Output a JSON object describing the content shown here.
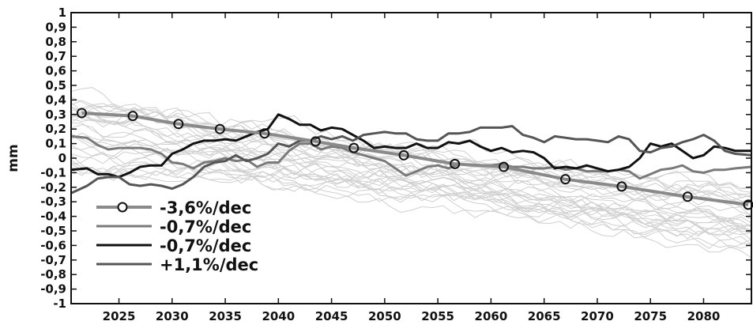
{
  "chart_data": {
    "type": "line",
    "title": "",
    "xlabel": "",
    "ylabel": "mm",
    "xlim": [
      2020.5,
      2084.5
    ],
    "ylim": [
      -1,
      1
    ],
    "x_ticks": [
      2025,
      2030,
      2035,
      2040,
      2045,
      2050,
      2055,
      2060,
      2065,
      2070,
      2075,
      2080
    ],
    "x_tick_labels": [
      "2025",
      "2030",
      "2035",
      "2040",
      "2045",
      "2050",
      "2055",
      "2060",
      "2065",
      "2070",
      "2075",
      "2080"
    ],
    "y_ticks": [
      1,
      0.9,
      0.8,
      0.7,
      0.6,
      0.5,
      0.4,
      0.3,
      0.2,
      0.1,
      0,
      -0.1,
      -0.2,
      -0.3,
      -0.4,
      -0.5,
      -0.6,
      -0.7,
      -0.8,
      -0.9,
      -1
    ],
    "y_tick_labels": [
      "1",
      "0,9",
      "0,8",
      "0,7",
      "0,6",
      "0,5",
      "0,4",
      "0,3",
      "0,2",
      "0,1",
      "0",
      "-0,1",
      "-0,2",
      "-0,3",
      "-0,4",
      "-0,5",
      "-0,6",
      "-0,7",
      "-0,8",
      "-0,9",
      "-1"
    ],
    "grid": false,
    "legend_position": "bottom-left",
    "ensemble_color": "#cfcfcf",
    "series": [
      {
        "name": "-3,6%/dec",
        "color": "#8a8a8a",
        "marker": "circle",
        "x": [
          2021.5,
          2026.3,
          2030.6,
          2034.5,
          2038.7,
          2043.5,
          2047.1,
          2051.8,
          2056.6,
          2061.2,
          2067.0,
          2072.3,
          2078.5,
          2084.2
        ],
        "values": [
          0.31,
          0.29,
          0.235,
          0.2,
          0.17,
          0.115,
          0.07,
          0.02,
          -0.04,
          -0.06,
          -0.145,
          -0.195,
          -0.265,
          -0.32
        ]
      },
      {
        "name": "-0,7%/dec",
        "color": "#7a7a7a",
        "x": [
          2020.5,
          2022,
          2023,
          2024,
          2025,
          2026,
          2027,
          2028,
          2029,
          2030,
          2031,
          2032,
          2033,
          2034,
          2035,
          2036,
          2037,
          2038,
          2039,
          2040,
          2041,
          2042,
          2043,
          2044,
          2045,
          2046,
          2047,
          2048,
          2049,
          2050,
          2051,
          2052,
          2053,
          2054,
          2055,
          2056,
          2057,
          2058,
          2059,
          2060,
          2061,
          2062,
          2063,
          2064,
          2065,
          2066,
          2067,
          2068,
          2069,
          2070,
          2071,
          2072,
          2073,
          2074,
          2075,
          2076,
          2077,
          2078,
          2079,
          2080,
          2081,
          2082,
          2083,
          2084.5
        ],
        "values": [
          0.15,
          0.14,
          0.09,
          0.06,
          0.07,
          0.07,
          0.07,
          0.06,
          0.03,
          -0.03,
          -0.04,
          -0.07,
          -0.03,
          -0.02,
          0.0,
          -0.02,
          -0.01,
          -0.06,
          -0.03,
          -0.03,
          0.05,
          0.1,
          0.1,
          0.06,
          0.08,
          0.07,
          0.04,
          0.02,
          0.0,
          -0.02,
          -0.07,
          -0.12,
          -0.09,
          -0.06,
          -0.05,
          -0.07,
          -0.04,
          -0.05,
          -0.05,
          -0.05,
          -0.04,
          -0.06,
          -0.06,
          -0.07,
          -0.07,
          -0.06,
          -0.08,
          -0.07,
          -0.09,
          -0.09,
          -0.09,
          -0.08,
          -0.09,
          -0.14,
          -0.11,
          -0.08,
          -0.07,
          -0.05,
          -0.09,
          -0.1,
          -0.08,
          -0.08,
          -0.07,
          -0.06
        ]
      },
      {
        "name": "-0,7%/dec",
        "color": "#111111",
        "x": [
          2020.5,
          2022,
          2023,
          2024,
          2025,
          2026,
          2027,
          2028,
          2029,
          2030,
          2031,
          2032,
          2033,
          2034,
          2035,
          2036,
          2037,
          2038,
          2039,
          2040,
          2041,
          2042,
          2043,
          2044,
          2045,
          2046,
          2047,
          2048,
          2049,
          2050,
          2051,
          2052,
          2053,
          2054,
          2055,
          2056,
          2057,
          2058,
          2059,
          2060,
          2061,
          2062,
          2063,
          2064,
          2065,
          2066,
          2067,
          2068,
          2069,
          2070,
          2071,
          2072,
          2073,
          2074,
          2075,
          2076,
          2077,
          2078,
          2079,
          2080,
          2081,
          2082,
          2083,
          2084.5
        ],
        "values": [
          -0.08,
          -0.07,
          -0.11,
          -0.11,
          -0.13,
          -0.1,
          -0.06,
          -0.05,
          -0.05,
          0.03,
          0.06,
          0.1,
          0.12,
          0.12,
          0.13,
          0.12,
          0.15,
          0.18,
          0.2,
          0.3,
          0.27,
          0.23,
          0.23,
          0.19,
          0.21,
          0.2,
          0.16,
          0.12,
          0.07,
          0.08,
          0.07,
          0.07,
          0.1,
          0.07,
          0.07,
          0.11,
          0.1,
          0.12,
          0.08,
          0.05,
          0.07,
          0.04,
          0.05,
          0.04,
          0.0,
          -0.07,
          -0.06,
          -0.07,
          -0.05,
          -0.07,
          -0.09,
          -0.08,
          -0.06,
          0.0,
          0.1,
          0.08,
          0.1,
          0.05,
          0.0,
          0.02,
          0.08,
          0.07,
          0.05,
          0.05
        ]
      },
      {
        "name": "+1,1%/dec",
        "color": "#555555",
        "x": [
          2020.5,
          2022,
          2023,
          2024,
          2025,
          2026,
          2027,
          2028,
          2029,
          2030,
          2031,
          2032,
          2033,
          2034,
          2035,
          2036,
          2037,
          2038,
          2039,
          2040,
          2041,
          2042,
          2043,
          2044,
          2045,
          2046,
          2047,
          2048,
          2049,
          2050,
          2051,
          2052,
          2053,
          2054,
          2055,
          2056,
          2057,
          2058,
          2059,
          2060,
          2061,
          2062,
          2063,
          2064,
          2065,
          2066,
          2067,
          2068,
          2069,
          2070,
          2071,
          2072,
          2073,
          2074,
          2075,
          2076,
          2077,
          2078,
          2079,
          2080,
          2081,
          2082,
          2083,
          2084.5
        ],
        "values": [
          -0.24,
          -0.19,
          -0.14,
          -0.13,
          -0.13,
          -0.18,
          -0.19,
          -0.18,
          -0.19,
          -0.21,
          -0.18,
          -0.13,
          -0.06,
          -0.03,
          -0.02,
          0.02,
          -0.02,
          0.0,
          0.03,
          0.1,
          0.08,
          0.12,
          0.12,
          0.15,
          0.13,
          0.15,
          0.12,
          0.16,
          0.17,
          0.18,
          0.17,
          0.17,
          0.13,
          0.12,
          0.12,
          0.17,
          0.17,
          0.18,
          0.21,
          0.21,
          0.21,
          0.22,
          0.16,
          0.14,
          0.11,
          0.15,
          0.14,
          0.13,
          0.13,
          0.12,
          0.11,
          0.15,
          0.13,
          0.05,
          0.04,
          0.07,
          0.08,
          0.11,
          0.13,
          0.16,
          0.12,
          0.05,
          0.03,
          0.02
        ]
      }
    ]
  }
}
